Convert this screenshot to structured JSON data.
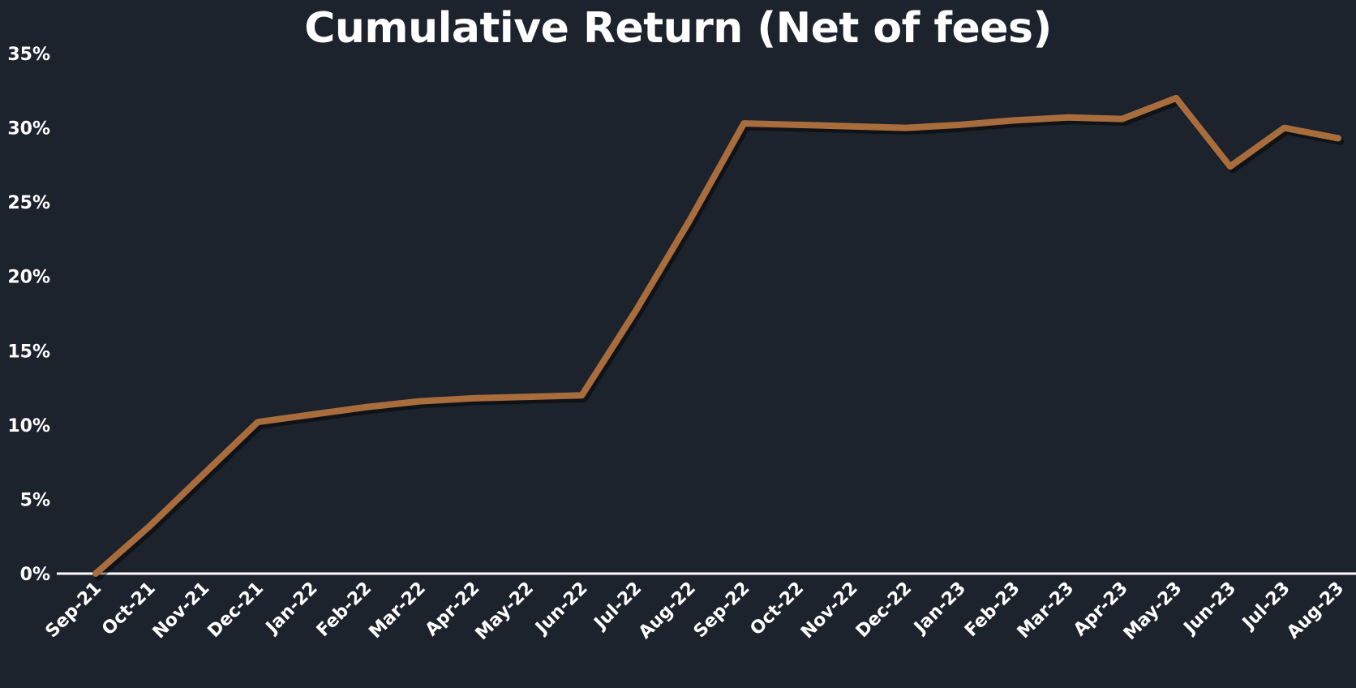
{
  "chart_data": {
    "type": "line",
    "title": "Cumulative Return (Net of fees)",
    "xlabel": "",
    "ylabel": "",
    "ylim": [
      0,
      35
    ],
    "y_ticks": [
      "0%",
      "5%",
      "10%",
      "15%",
      "20%",
      "25%",
      "30%",
      "35%"
    ],
    "y_tick_values": [
      0,
      5,
      10,
      15,
      20,
      25,
      30,
      35
    ],
    "grid": false,
    "legend": "none",
    "categories": [
      "Sep-21",
      "Oct-21",
      "Nov-21",
      "Dec-21",
      "Jan-22",
      "Feb-22",
      "Mar-22",
      "Apr-22",
      "May-22",
      "Jun-22",
      "Jul-22",
      "Aug-22",
      "Sep-22",
      "Oct-22",
      "Nov-22",
      "Dec-22",
      "Jan-23",
      "Feb-23",
      "Mar-23",
      "Apr-23",
      "May-23",
      "Jun-23",
      "Jul-23",
      "Aug-23"
    ],
    "series": [
      {
        "values": [
          0.0,
          3.2,
          6.7,
          10.2,
          10.7,
          11.2,
          11.6,
          11.8,
          11.9,
          12.0,
          17.7,
          23.8,
          30.3,
          30.2,
          30.1,
          30.0,
          30.2,
          30.5,
          30.7,
          30.6,
          32.0,
          27.4,
          30.0,
          29.3
        ],
        "color": "#a96c3d"
      }
    ],
    "colors": {
      "background": "#1c232d",
      "line": "#a96c3d",
      "text": "#ffffff",
      "axis": "#ffffff"
    }
  }
}
